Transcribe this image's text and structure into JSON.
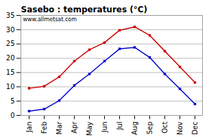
{
  "chart_data": {
    "type": "line",
    "title": "Sasebo : temperatures (°C)",
    "categories": [
      "Jan",
      "Feb",
      "Mar",
      "Apr",
      "May",
      "Jun",
      "Jul",
      "Aug",
      "Sep",
      "Oct",
      "Nov",
      "Dec"
    ],
    "series": [
      {
        "color": "#cc0000",
        "values": [
          9.5,
          10.2,
          13.5,
          19.0,
          23.0,
          25.5,
          29.8,
          31.0,
          28.0,
          22.5,
          17.0,
          11.5
        ]
      },
      {
        "color": "#0000cc",
        "values": [
          1.5,
          2.2,
          5.2,
          10.5,
          14.5,
          19.0,
          23.3,
          23.8,
          20.3,
          14.5,
          9.3,
          4.0
        ]
      }
    ],
    "ylim": [
      0,
      35
    ],
    "yticks": [
      0,
      5,
      10,
      15,
      20,
      25,
      30,
      35
    ],
    "grid": true,
    "marker": "square",
    "annotations": [
      "www.allmetsat.com"
    ]
  }
}
